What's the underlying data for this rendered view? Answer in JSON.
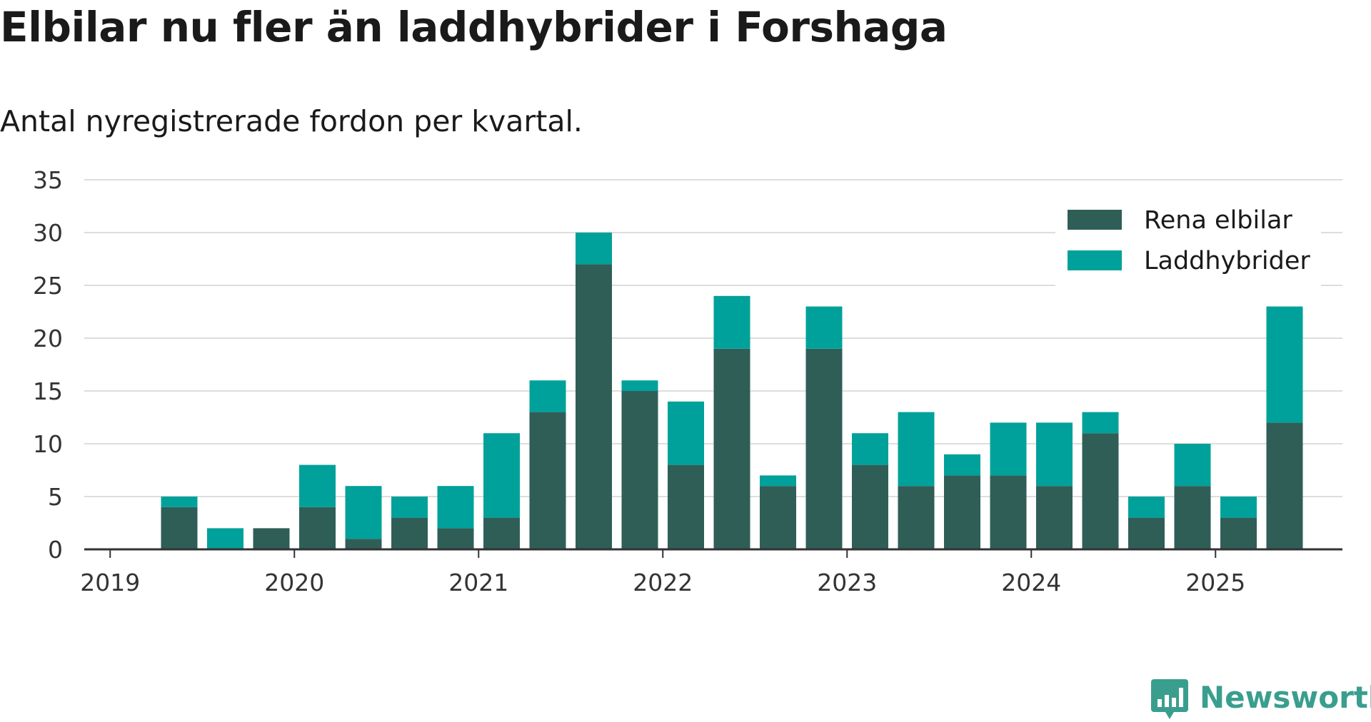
{
  "chart_data": {
    "type": "bar",
    "stacked": true,
    "title": "Elbilar nu fler än laddhybrider i Forshaga",
    "subtitle": "Antal nyregistrerade fordon per kvartal.",
    "categories": [
      "2019 Q1",
      "2019 Q2",
      "2019 Q3",
      "2019 Q4",
      "2020 Q1",
      "2020 Q2",
      "2020 Q3",
      "2020 Q4",
      "2021 Q1",
      "2021 Q2",
      "2021 Q3",
      "2021 Q4",
      "2022 Q1",
      "2022 Q2",
      "2022 Q3",
      "2022 Q4",
      "2023 Q1",
      "2023 Q2",
      "2023 Q3",
      "2023 Q4",
      "2024 Q1",
      "2024 Q2",
      "2024 Q3",
      "2024 Q4",
      "2025 Q1",
      "2025 Q2"
    ],
    "series": [
      {
        "name": "Rena elbilar",
        "color": "#2f5e57",
        "values": [
          0,
          4,
          0,
          2,
          4,
          1,
          3,
          2,
          3,
          13,
          27,
          15,
          8,
          19,
          6,
          19,
          8,
          6,
          7,
          7,
          6,
          11,
          3,
          6,
          3,
          12
        ]
      },
      {
        "name": "Laddhybrider",
        "color": "#00a19a",
        "values": [
          0,
          1,
          2,
          0,
          4,
          5,
          2,
          4,
          8,
          3,
          3,
          1,
          6,
          5,
          1,
          4,
          3,
          7,
          2,
          5,
          6,
          2,
          2,
          4,
          2,
          11
        ]
      }
    ],
    "y_ticks": [
      "0",
      "5",
      "10",
      "15",
      "20",
      "25",
      "30",
      "35"
    ],
    "x_ticks": [
      "2019",
      "2020",
      "2021",
      "2022",
      "2023",
      "2024",
      "2025"
    ],
    "ylim": [
      0,
      35
    ],
    "grid": true,
    "legend_position": "top-right"
  },
  "logo": {
    "text": "Newsworthy",
    "color": "#3a9e8e"
  }
}
